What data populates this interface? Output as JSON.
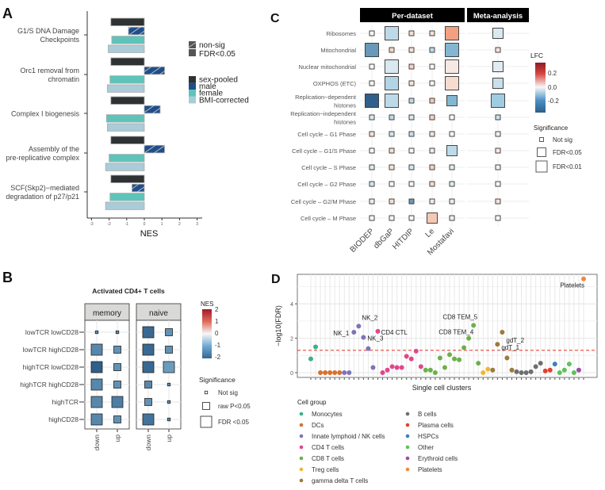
{
  "chart_data": [
    {
      "panel_label": "A",
      "type": "bar",
      "orientation": "horizontal",
      "categories": [
        "G1/S DNA Damage\nCheckpoints",
        "Orc1 removal from\nchromatin",
        "Complex I biogenesis",
        "Assembly of the\npre-replicative complex",
        "SCF(Skp2)−mediated\ndegradation of p27/p21"
      ],
      "series": [
        {
          "name": "sex-pooled",
          "color": "#2e3233",
          "values": [
            -1.9,
            -1.9,
            -1.9,
            -1.9,
            -1.9
          ],
          "significant": [
            true,
            true,
            true,
            true,
            true
          ]
        },
        {
          "name": "male",
          "color": "#1f4e8c",
          "values": [
            -0.9,
            1.15,
            0.9,
            1.15,
            -0.7
          ],
          "significant": [
            false,
            false,
            false,
            false,
            false
          ]
        },
        {
          "name": "female",
          "color": "#5ec4b9",
          "values": [
            -1.85,
            -1.95,
            -2.15,
            -2.0,
            -1.95
          ],
          "significant": [
            true,
            true,
            true,
            true,
            true
          ]
        },
        {
          "name": "BMI-corrected",
          "color": "#a9ccd8",
          "values": [
            -2.05,
            -2.1,
            -2.1,
            -2.2,
            -2.2
          ],
          "significant": [
            true,
            true,
            true,
            true,
            true
          ]
        }
      ],
      "significance_legend": [
        "non-sig",
        "FDR<0.05"
      ],
      "xlabel": "NES",
      "xlim": [
        -3,
        3
      ],
      "xticks": [
        "-3",
        "-2",
        "-1",
        "0",
        "1",
        "2",
        "3"
      ],
      "grid": false,
      "legend": "right"
    },
    {
      "panel_label": "B",
      "type": "heatmap",
      "title": "Activated CD4+ T cells",
      "facets": [
        "memory",
        "naive"
      ],
      "columns": [
        "down",
        "up"
      ],
      "rows": [
        "lowTCR lowCD28",
        "lowTCR highCD28",
        "highTCR lowCD28",
        "highTCR highCD28",
        "highTCR",
        "highCD28"
      ],
      "nes": {
        "memory": [
          [
            -1.5,
            -1.5
          ],
          [
            -1.6,
            -1.5
          ],
          [
            -2.0,
            -1.5
          ],
          [
            -1.6,
            -1.5
          ],
          [
            -1.6,
            -1.7
          ],
          [
            -1.6,
            -1.5
          ]
        ],
        "naive": [
          [
            -1.9,
            -1.5
          ],
          [
            -1.9,
            -1.5
          ],
          [
            -1.9,
            -1.4
          ],
          [
            -1.6,
            -1.5
          ],
          [
            -1.5,
            -1.5
          ],
          [
            -1.8,
            -1.5
          ]
        ]
      },
      "significance": {
        "memory": [
          [
            "Not sig",
            "Not sig"
          ],
          [
            "FDR <0.05",
            "raw P<0.05"
          ],
          [
            "FDR <0.05",
            "raw P<0.05"
          ],
          [
            "FDR <0.05",
            "raw P<0.05"
          ],
          [
            "FDR <0.05",
            "FDR <0.05"
          ],
          [
            "FDR <0.05",
            "raw P<0.05"
          ]
        ],
        "naive": [
          [
            "FDR <0.05",
            "raw P<0.05"
          ],
          [
            "FDR <0.05",
            "raw P<0.05"
          ],
          [
            "FDR <0.05",
            "FDR <0.05"
          ],
          [
            "raw P<0.05",
            "Not sig"
          ],
          [
            "raw P<0.05",
            "Not sig"
          ],
          [
            "FDR <0.05",
            "Not sig"
          ]
        ]
      },
      "color_legend": {
        "title": "NES",
        "ticks": [
          "2",
          "1",
          "0",
          "-1",
          "-2"
        ],
        "range": [
          -2,
          2
        ]
      },
      "size_legend": {
        "title": "Significance",
        "levels": [
          "Not sig",
          "raw P<0.05",
          "FDR <0.05"
        ]
      }
    },
    {
      "panel_label": "C",
      "type": "heatmap",
      "facets": [
        "Per-dataset",
        "Meta-analysis"
      ],
      "columns": [
        "BIODEP",
        "dbGaP",
        "HITDIP",
        "Le",
        "Mostafavi"
      ],
      "rows": [
        "Ribosomes",
        "Mitochondrial",
        "Nuclear mitochondrial",
        "OXPHOS (ETC)",
        "Replication−dependent\nhistones",
        "Replication−independent\nhistones",
        "Cell cycle – G1 Phase",
        "Cell cycle – G1/S Phase",
        "Cell cycle – S Phase",
        "Cell cycle – G2 Phase",
        "Cell cycle – G2/M Phase",
        "Cell cycle – M Phase"
      ],
      "lfc": [
        [
          0.0,
          -0.1,
          0.05,
          0.05,
          0.18,
          -0.05
        ],
        [
          -0.25,
          0.07,
          0.05,
          -0.1,
          -0.2,
          0.04
        ],
        [
          0.0,
          -0.05,
          0.08,
          0.0,
          0.03,
          -0.04
        ],
        [
          0.0,
          -0.12,
          0.04,
          0.0,
          0.06,
          -0.08
        ],
        [
          -0.35,
          -0.1,
          -0.1,
          0.1,
          -0.2,
          -0.15
        ],
        [
          -0.05,
          -0.1,
          -0.05,
          0.08,
          0.0,
          -0.08
        ],
        [
          0.05,
          -0.06,
          -0.08,
          0.04,
          0.0,
          -0.02
        ],
        [
          0.0,
          0.05,
          0.0,
          0.03,
          -0.1,
          0.03
        ],
        [
          -0.04,
          0.04,
          -0.06,
          0.08,
          -0.04,
          0.02
        ],
        [
          -0.06,
          0.0,
          0.0,
          0.06,
          -0.04,
          0.0
        ],
        [
          -0.03,
          0.05,
          -0.25,
          0.03,
          -0.03,
          0.04
        ],
        [
          0.0,
          0.0,
          0.0,
          0.1,
          -0.02,
          0.0
        ]
      ],
      "significance": [
        [
          "Not sig",
          "FDR<0.01",
          "Not sig",
          "Not sig",
          "FDR<0.01",
          "FDR<0.05"
        ],
        [
          "FDR<0.01",
          "Not sig",
          "Not sig",
          "Not sig",
          "FDR<0.01",
          "Not sig"
        ],
        [
          "Not sig",
          "FDR<0.01",
          "Not sig",
          "Not sig",
          "FDR<0.01",
          "FDR<0.05"
        ],
        [
          "Not sig",
          "FDR<0.01",
          "Not sig",
          "Not sig",
          "FDR<0.01",
          "FDR<0.05"
        ],
        [
          "FDR<0.01",
          "FDR<0.01",
          "Not sig",
          "Not sig",
          "FDR<0.05",
          "FDR<0.01"
        ],
        [
          "Not sig",
          "Not sig",
          "Not sig",
          "Not sig",
          "Not sig",
          "Not sig"
        ],
        [
          "Not sig",
          "Not sig",
          "Not sig",
          "Not sig",
          "Not sig",
          "Not sig"
        ],
        [
          "Not sig",
          "Not sig",
          "Not sig",
          "Not sig",
          "FDR<0.05",
          "Not sig"
        ],
        [
          "Not sig",
          "Not sig",
          "Not sig",
          "Not sig",
          "Not sig",
          "Not sig"
        ],
        [
          "Not sig",
          "Not sig",
          "Not sig",
          "Not sig",
          "Not sig",
          "Not sig"
        ],
        [
          "Not sig",
          "Not sig",
          "Not sig",
          "Not sig",
          "Not sig",
          "Not sig"
        ],
        [
          "Not sig",
          "Not sig",
          "Not sig",
          "FDR<0.05",
          "Not sig",
          "Not sig"
        ]
      ],
      "color_legend": {
        "title": "LFC",
        "ticks": [
          "0.2",
          "0.0",
          "-0.2"
        ]
      },
      "size_legend": {
        "title": "Significance",
        "levels": [
          "Not sig",
          "FDR<0.05",
          "FDR<0.01"
        ]
      }
    },
    {
      "panel_label": "D",
      "type": "scatter",
      "xlabel": "Single cell clusters",
      "ylabel": "−log10(FDR)",
      "ylim": [
        0,
        5.6
      ],
      "yticks": [
        "0",
        "2",
        "4"
      ],
      "threshold": 1.3,
      "grid": true,
      "legend_title": "Cell group",
      "groups": [
        {
          "name": "Monocytes",
          "color": "#3fae8d"
        },
        {
          "name": "DCs",
          "color": "#d6712e"
        },
        {
          "name": "Innate lymphoid / NK cells",
          "color": "#7d74b8"
        },
        {
          "name": "CD4 T cells",
          "color": "#e2468b"
        },
        {
          "name": "CD8 T cells",
          "color": "#6cb04a"
        },
        {
          "name": "Treg cells",
          "color": "#efb63a"
        },
        {
          "name": "gamma delta T cells",
          "color": "#9c7a3c"
        },
        {
          "name": "B cells",
          "color": "#6e6e6e"
        },
        {
          "name": "Plasma cells",
          "color": "#e2412f"
        },
        {
          "name": "HSPCs",
          "color": "#3f7fc0"
        },
        {
          "name": "Other",
          "color": "#5ec25a"
        },
        {
          "name": "Erythroid cells",
          "color": "#9b4da3"
        },
        {
          "name": "Platelets",
          "color": "#f08a3c"
        }
      ],
      "points": [
        {
          "group": 0,
          "y": 0.8
        },
        {
          "group": 0,
          "y": 1.5
        },
        {
          "group": 1,
          "y": 0
        },
        {
          "group": 1,
          "y": 0
        },
        {
          "group": 1,
          "y": 0
        },
        {
          "group": 1,
          "y": 0
        },
        {
          "group": 1,
          "y": 0
        },
        {
          "group": 2,
          "y": 0
        },
        {
          "group": 2,
          "y": 0
        },
        {
          "group": 2,
          "y": 2.35,
          "label": "NK_1"
        },
        {
          "group": 2,
          "y": 2.7,
          "label": "NK_2"
        },
        {
          "group": 2,
          "y": 2.05
        },
        {
          "group": 2,
          "y": 1.4,
          "label": "NK_3"
        },
        {
          "group": 2,
          "y": 0.3
        },
        {
          "group": 3,
          "y": 2.4,
          "label": "CD4 CTL"
        },
        {
          "group": 3,
          "y": 0
        },
        {
          "group": 3,
          "y": 0.15
        },
        {
          "group": 3,
          "y": 0.35
        },
        {
          "group": 3,
          "y": 0.3
        },
        {
          "group": 3,
          "y": 0.3
        },
        {
          "group": 3,
          "y": 0.95
        },
        {
          "group": 3,
          "y": 0.8
        },
        {
          "group": 3,
          "y": 1.25
        },
        {
          "group": 3,
          "y": 0.35
        },
        {
          "group": 4,
          "y": 0.15
        },
        {
          "group": 4,
          "y": 0.15
        },
        {
          "group": 4,
          "y": 0
        },
        {
          "group": 4,
          "y": 0.85
        },
        {
          "group": 4,
          "y": 0.3
        },
        {
          "group": 4,
          "y": 1.05
        },
        {
          "group": 4,
          "y": 0.8
        },
        {
          "group": 4,
          "y": 0.75
        },
        {
          "group": 4,
          "y": 1.45
        },
        {
          "group": 4,
          "y": 2.0,
          "label": "CD8 TEM_4"
        },
        {
          "group": 4,
          "y": 2.75,
          "label": "CD8 TEM_5"
        },
        {
          "group": 4,
          "y": 0.55
        },
        {
          "group": 5,
          "y": 0
        },
        {
          "group": 5,
          "y": 0.2
        },
        {
          "group": 6,
          "y": 0.15
        },
        {
          "group": 6,
          "y": 1.65,
          "label": "gdT_1"
        },
        {
          "group": 6,
          "y": 2.35,
          "label": "gdT_2"
        },
        {
          "group": 6,
          "y": 0.85
        },
        {
          "group": 6,
          "y": 0.15
        },
        {
          "group": 7,
          "y": 0.05
        },
        {
          "group": 7,
          "y": 0
        },
        {
          "group": 7,
          "y": 0
        },
        {
          "group": 7,
          "y": 0.05
        },
        {
          "group": 7,
          "y": 0.35
        },
        {
          "group": 7,
          "y": 0.55
        },
        {
          "group": 8,
          "y": 0.1
        },
        {
          "group": 8,
          "y": 0.15
        },
        {
          "group": 9,
          "y": 0.5
        },
        {
          "group": 10,
          "y": 0
        },
        {
          "group": 10,
          "y": 0.15
        },
        {
          "group": 10,
          "y": 0.5
        },
        {
          "group": 10,
          "y": 0
        },
        {
          "group": 11,
          "y": 0.15
        },
        {
          "group": 12,
          "y": 5.45,
          "label": "Platelets"
        }
      ]
    }
  ]
}
